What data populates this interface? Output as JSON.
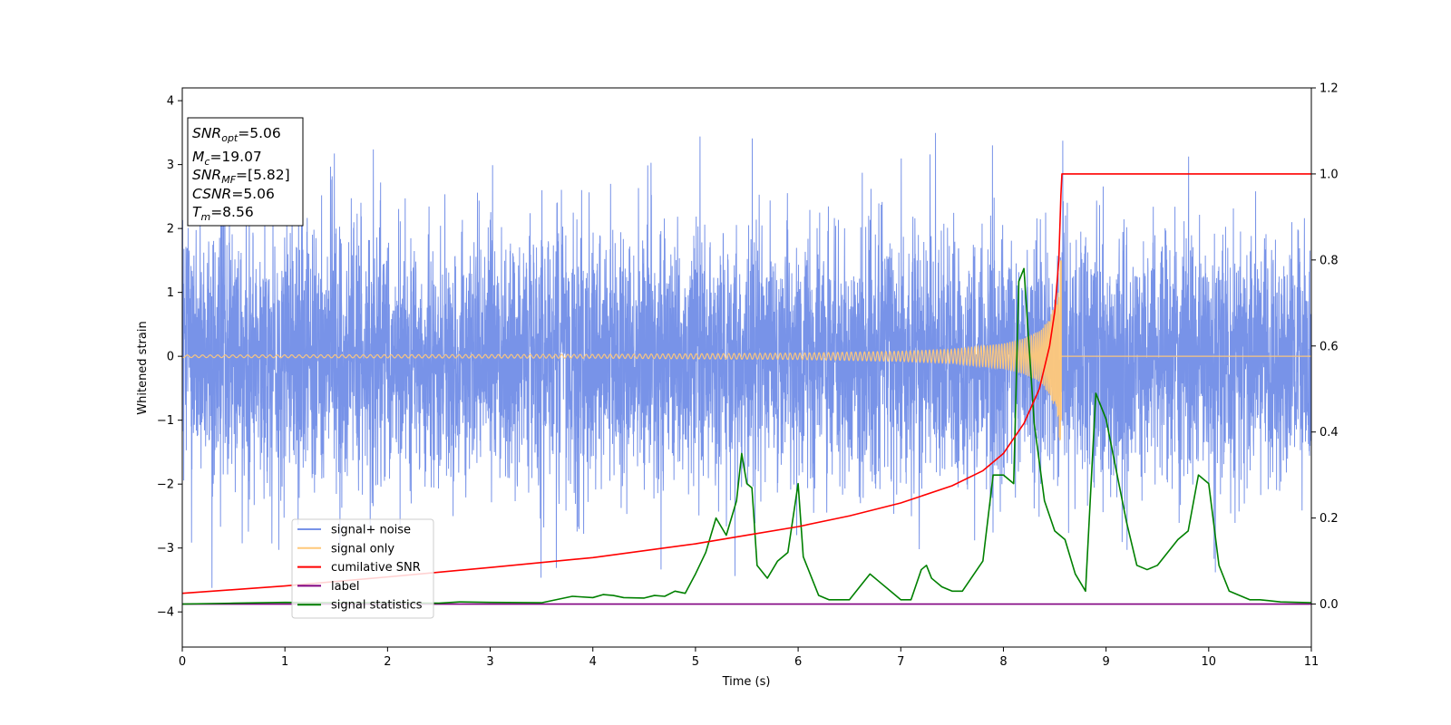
{
  "chart_data": {
    "type": "line",
    "title": "",
    "xlabel": "Time (s)",
    "ylabel": "Whitened strain",
    "xlim": [
      0,
      11
    ],
    "ylim": [
      -4.55,
      4.2
    ],
    "y2lim": [
      -0.1,
      1.2
    ],
    "grid": false,
    "x_ticks": [
      "0",
      "1",
      "2",
      "3",
      "4",
      "5",
      "6",
      "7",
      "8",
      "9",
      "10",
      "11"
    ],
    "y_ticks": [
      "4",
      "3",
      "2",
      "1",
      "0",
      "−1",
      "−2",
      "−3",
      "−4"
    ],
    "y2_ticks": [
      "1.2",
      "1.0",
      "0.8",
      "0.6",
      "0.4",
      "0.2",
      "0.0"
    ],
    "annotation": {
      "snr_opt": {
        "name": "SNR",
        "sub": "opt",
        "value": "=5.06"
      },
      "mc": {
        "name": "M",
        "sub": "c",
        "value": "=19.07"
      },
      "snr_mf": {
        "name": "SNR",
        "sub": "MF",
        "value": "=[5.82]"
      },
      "csnr": {
        "name": "CSNR",
        "value": "=5.06"
      },
      "tm": {
        "name": "T",
        "sub": "m",
        "value": "=8.56"
      }
    },
    "legend": {
      "placement": "lower-left",
      "entries": [
        {
          "label": "signal+ noise",
          "color": "#7893e8"
        },
        {
          "label": "signal only",
          "color": "#ffc87a"
        },
        {
          "label": "cumilative SNR",
          "color": "#ff0000"
        },
        {
          "label": "label",
          "color": "#800080"
        },
        {
          "label": "signal statistics",
          "color": "#008000"
        }
      ]
    },
    "series": [
      {
        "name": "signal+ noise",
        "axis": "left",
        "color": "#7893e8",
        "description_of_shape": "dense gaussian noise",
        "noise_sigma": 1.0,
        "noise_range": [
          -4.2,
          3.8
        ]
      },
      {
        "name": "signal only",
        "axis": "left",
        "color": "#ffc87a",
        "chirp_end_time": 8.56,
        "peak_amplitude": 1.5,
        "amplitude_points": [
          [
            0,
            0.02
          ],
          [
            4,
            0.03
          ],
          [
            6,
            0.05
          ],
          [
            7,
            0.08
          ],
          [
            7.5,
            0.11
          ],
          [
            8,
            0.2
          ],
          [
            8.2,
            0.28
          ],
          [
            8.35,
            0.4
          ],
          [
            8.45,
            0.6
          ],
          [
            8.52,
            0.9
          ],
          [
            8.56,
            1.5
          ]
        ]
      },
      {
        "name": "cumilative SNR",
        "axis": "right",
        "color": "#ff0000",
        "x": [
          0,
          1,
          2,
          3,
          4,
          5,
          5.5,
          6,
          6.5,
          7,
          7.5,
          7.8,
          8,
          8.2,
          8.35,
          8.45,
          8.5,
          8.54,
          8.56,
          8.57,
          11
        ],
        "y": [
          0.025,
          0.042,
          0.063,
          0.085,
          0.108,
          0.14,
          0.16,
          0.18,
          0.205,
          0.235,
          0.275,
          0.31,
          0.35,
          0.42,
          0.5,
          0.6,
          0.68,
          0.8,
          0.95,
          1.0,
          1.0
        ]
      },
      {
        "name": "label",
        "axis": "right",
        "color": "#800080",
        "x": [
          0,
          11
        ],
        "y": [
          0.0,
          0.0
        ]
      },
      {
        "name": "signal statistics",
        "axis": "right",
        "color": "#008000",
        "x": [
          0,
          0.5,
          1,
          1.5,
          2,
          2.5,
          2.7,
          3,
          3.5,
          3.8,
          4,
          4.1,
          4.2,
          4.3,
          4.5,
          4.6,
          4.7,
          4.8,
          4.9,
          5,
          5.1,
          5.2,
          5.3,
          5.4,
          5.45,
          5.5,
          5.55,
          5.6,
          5.7,
          5.8,
          5.9,
          6,
          6.05,
          6.2,
          6.3,
          6.5,
          6.6,
          6.7,
          6.8,
          6.9,
          7,
          7.1,
          7.2,
          7.25,
          7.3,
          7.4,
          7.5,
          7.6,
          7.8,
          7.9,
          8,
          8.1,
          8.15,
          8.2,
          8.3,
          8.4,
          8.5,
          8.6,
          8.7,
          8.8,
          8.9,
          9,
          9.1,
          9.2,
          9.3,
          9.4,
          9.5,
          9.6,
          9.7,
          9.8,
          9.9,
          10,
          10.1,
          10.2,
          10.3,
          10.4,
          10.5,
          10.7,
          11
        ],
        "y": [
          0.0,
          0.002,
          0.004,
          0.003,
          0.003,
          0.002,
          0.005,
          0.004,
          0.003,
          0.018,
          0.015,
          0.022,
          0.02,
          0.015,
          0.014,
          0.02,
          0.018,
          0.03,
          0.025,
          0.07,
          0.12,
          0.2,
          0.16,
          0.24,
          0.35,
          0.28,
          0.27,
          0.09,
          0.06,
          0.1,
          0.12,
          0.28,
          0.11,
          0.02,
          0.01,
          0.01,
          0.04,
          0.07,
          0.05,
          0.03,
          0.01,
          0.01,
          0.08,
          0.09,
          0.06,
          0.04,
          0.03,
          0.03,
          0.1,
          0.3,
          0.3,
          0.28,
          0.75,
          0.78,
          0.42,
          0.24,
          0.17,
          0.15,
          0.07,
          0.03,
          0.49,
          0.43,
          0.31,
          0.19,
          0.09,
          0.08,
          0.09,
          0.12,
          0.15,
          0.17,
          0.3,
          0.28,
          0.09,
          0.03,
          0.02,
          0.01,
          0.01,
          0.005,
          0.003
        ]
      }
    ]
  }
}
